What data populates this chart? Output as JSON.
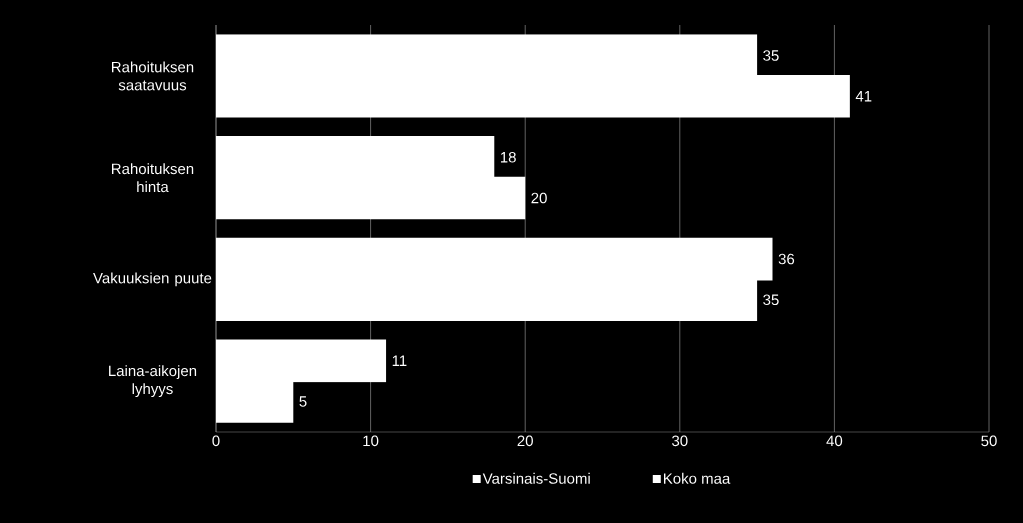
{
  "chart_data": {
    "type": "bar",
    "orientation": "horizontal",
    "categories": [
      "Rahoituksen saatavuus",
      "Rahoituksen hinta",
      "Vakuuksien puute",
      "Laina-aikojen lyhyys"
    ],
    "series": [
      {
        "name": "Varsinais-Suomi",
        "color": "#ffffff",
        "values": [
          35,
          18,
          36,
          11
        ]
      },
      {
        "name": "Koko maa",
        "color": "#ffffff",
        "values": [
          41,
          20,
          35,
          5
        ]
      }
    ],
    "xlim": [
      0,
      50
    ],
    "xticks": [
      0,
      10,
      20,
      30,
      40,
      50
    ],
    "grid": "x",
    "legend": "bottom",
    "data_labels": true
  }
}
